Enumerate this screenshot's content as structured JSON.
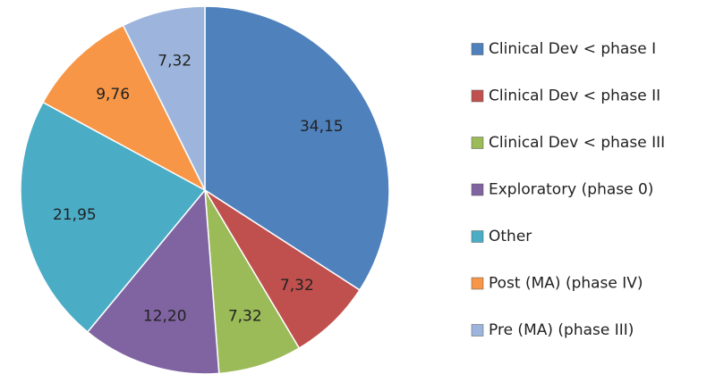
{
  "chart_data": {
    "type": "pie",
    "categories": [
      "Clinical Dev < phase I",
      "Clinical Dev < phase II",
      "Clinical Dev < phase III",
      "Exploratory (phase 0)",
      "Other",
      "Post (MA) (phase IV)",
      "Pre (MA) (phase III)"
    ],
    "values": [
      34.15,
      7.32,
      7.32,
      12.2,
      21.95,
      9.76,
      7.32
    ],
    "value_labels": [
      "34,15",
      "7,32",
      "7,32",
      "12,20",
      "21,95",
      "9,76",
      "7,32"
    ],
    "colors": [
      "#4f81bd",
      "#c0504d",
      "#9bbb59",
      "#8064a2",
      "#4bacc6",
      "#f79646",
      "#9db5dc"
    ],
    "legend": "right"
  }
}
